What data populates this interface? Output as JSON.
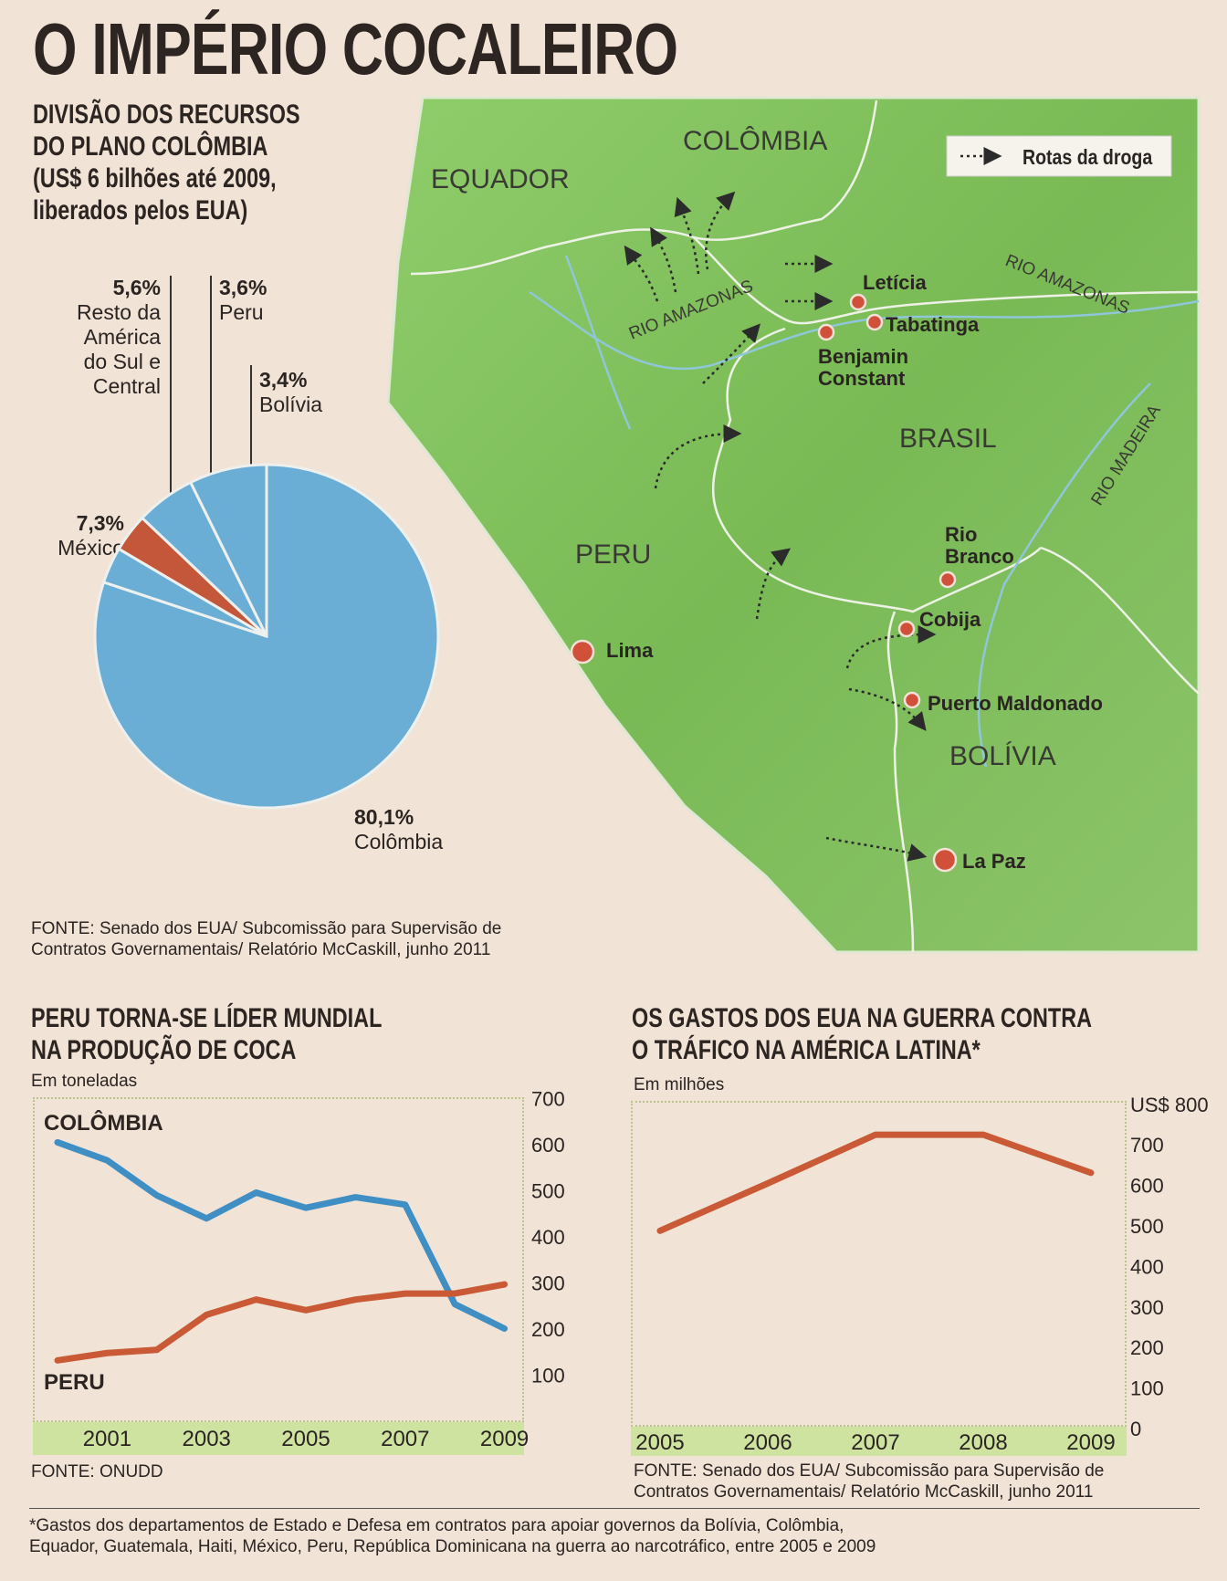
{
  "title": "O IMPÉRIO COCALEIRO",
  "pie_section": {
    "heading": [
      "DIVISÃO DOS RECURSOS",
      "DO PLANO COLÔMBIA",
      "(US$ 6 bilhões até 2009,",
      "liberados pelos EUA)"
    ],
    "source": [
      "FONTE: Senado dos EUA/ Subcomissão para Supervisão de",
      "Contratos Governamentais/ Relatório McCaskill, junho 2011"
    ]
  },
  "map": {
    "legend": "Rotas da droga",
    "countries": [
      "COLÔMBIA",
      "EQUADOR",
      "BRASIL",
      "PERU",
      "BOLÍVIA"
    ],
    "rivers": [
      "RIO AMAZONAS",
      "RIO AMAZONAS",
      "RIO MADEIRA"
    ],
    "cities": [
      "Letícia",
      "Tabatinga",
      "Benjamin",
      "Constant",
      "Rio",
      "Branco",
      "Cobija",
      "Puerto Maldonado",
      "La Paz",
      "Lima"
    ],
    "colors": {
      "land": "#7fbf5a",
      "city": "#d0503a",
      "river": "#8fc6d8"
    }
  },
  "chart1": {
    "heading": [
      "PERU TORNA-SE LÍDER MUNDIAL",
      "NA PRODUÇÃO DE COCA"
    ],
    "unit": "Em toneladas",
    "source": "FONTE: ONUDD"
  },
  "chart2": {
    "heading": [
      "OS GASTOS DOS EUA NA GUERRA CONTRA",
      "O TRÁFICO NA AMÉRICA LATINA*"
    ],
    "unit": "Em milhões",
    "source": [
      "FONTE: Senado dos EUA/ Subcomissão para Supervisão de",
      "Contratos Governamentais/ Relatório McCaskill, junho 2011"
    ]
  },
  "footnote": [
    "*Gastos dos departamentos de Estado e Defesa em contratos para apoiar governos da Bolívia, Colômbia,",
    "Equador, Guatemala, Haiti, México, Peru, República Dominicana na guerra ao narcotráfico, entre 2005 e 2009"
  ],
  "chart_data": [
    {
      "type": "pie",
      "title": "Divisão dos recursos do Plano Colômbia",
      "slices": [
        {
          "label": "Colômbia",
          "value": 80.1,
          "text": "80,1%",
          "color": "#6aaed6"
        },
        {
          "label": "Bolívia",
          "value": 3.4,
          "text": "3,4%",
          "color": "#6aaed6"
        },
        {
          "label": "Peru",
          "value": 3.6,
          "text": "3,6%",
          "color": "#c4573a"
        },
        {
          "label": "Resto da América do Sul e Central",
          "value": 5.6,
          "text": "5,6%",
          "color": "#6aaed6"
        },
        {
          "label": "México",
          "value": 7.3,
          "text": "7,3%",
          "color": "#6aaed6"
        }
      ]
    },
    {
      "type": "line",
      "title": "Peru torna-se líder mundial na produção de coca",
      "ylabel": "Em toneladas",
      "ylim": [
        0,
        700
      ],
      "yticks": [
        100,
        200,
        300,
        400,
        500,
        600,
        700
      ],
      "xticks": [
        2001,
        2003,
        2005,
        2007,
        2009
      ],
      "x": [
        2000,
        2001,
        2002,
        2003,
        2004,
        2005,
        2006,
        2007,
        2008,
        2009
      ],
      "series": [
        {
          "name": "COLÔMBIA",
          "color": "#3f8fc4",
          "values": [
            605,
            566,
            490,
            440,
            496,
            463,
            486,
            470,
            254,
            201
          ]
        },
        {
          "name": "PERU",
          "color": "#c95a35",
          "values": [
            132,
            148,
            155,
            231,
            264,
            241,
            264,
            277,
            277,
            297
          ]
        }
      ]
    },
    {
      "type": "line",
      "title": "Os gastos dos EUA na guerra contra o tráfico na América Latina",
      "ylabel": "Em milhões",
      "ylim": [
        0,
        800
      ],
      "yticks": [
        "0",
        "100",
        "200",
        "300",
        "400",
        "500",
        "600",
        "700",
        "US$ 800"
      ],
      "xticks": [
        2005,
        2006,
        2007,
        2008,
        2009
      ],
      "x": [
        2005,
        2006,
        2007,
        2008,
        2009
      ],
      "series": [
        {
          "name": "Gastos",
          "color": "#c95a35",
          "values": [
            488,
            605,
            725,
            725,
            631
          ]
        }
      ]
    }
  ]
}
